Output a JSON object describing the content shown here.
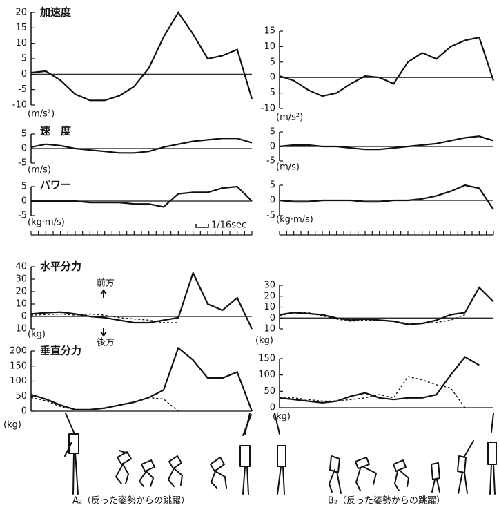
{
  "chart_data": [
    {
      "type": "line",
      "title": "加速度",
      "y_label": "(m/s²)",
      "x": [
        0,
        2,
        4,
        6,
        8,
        10,
        12,
        14,
        16,
        18,
        20,
        22,
        24,
        26,
        28,
        30
      ],
      "xlim": [
        0,
        30
      ],
      "ylim": [
        -10,
        20
      ],
      "yticks": [
        -10,
        -5,
        0,
        5,
        10,
        15,
        20
      ],
      "series": [
        {
          "color": "#111",
          "values": [
            0.5,
            1,
            -2,
            -6.5,
            -8.5,
            -8.5,
            -7,
            -4,
            2,
            12,
            20,
            13,
            5,
            6,
            8,
            -8
          ]
        }
      ]
    },
    {
      "type": "line",
      "title": "速　度",
      "y_label": "(m/s)",
      "x": [
        0,
        2,
        4,
        6,
        8,
        10,
        12,
        14,
        16,
        18,
        20,
        22,
        24,
        26,
        28,
        30
      ],
      "xlim": [
        0,
        30
      ],
      "ylim": [
        -5,
        5
      ],
      "yticks": [
        -5,
        0,
        5
      ],
      "series": [
        {
          "color": "#111",
          "values": [
            0.5,
            1.5,
            1,
            0,
            -0.5,
            -1,
            -1.5,
            -1.5,
            -1,
            0.5,
            1.5,
            2.5,
            3,
            3.5,
            3.5,
            2
          ]
        }
      ]
    },
    {
      "type": "line",
      "title": "パワー",
      "y_label": "(kg·m/s)",
      "scale_label": "1/16sec",
      "x": [
        0,
        2,
        4,
        6,
        8,
        10,
        12,
        14,
        16,
        18,
        20,
        22,
        24,
        26,
        28,
        30
      ],
      "xlim": [
        0,
        30
      ],
      "ylim": [
        -5,
        5
      ],
      "yticks": [
        -5,
        0,
        5
      ],
      "xticks": [
        0,
        1,
        2,
        3,
        4,
        5,
        6,
        7,
        8,
        9,
        10,
        11,
        12,
        13,
        14,
        15,
        16,
        17,
        18,
        19,
        20,
        21,
        22,
        23,
        24,
        25,
        26,
        27,
        28,
        29,
        30
      ],
      "series": [
        {
          "color": "#111",
          "values": [
            0,
            0,
            0,
            0,
            -0.5,
            -0.5,
            -0.5,
            -1,
            -1,
            -2,
            2.5,
            3,
            3,
            4.5,
            5,
            0
          ]
        }
      ]
    },
    {
      "type": "line",
      "title": "水平分力",
      "y_label": "(kg)",
      "annotations": [
        "前方",
        "後方"
      ],
      "x": [
        0,
        2,
        4,
        6,
        8,
        10,
        12,
        14,
        16,
        18,
        20,
        22,
        24,
        26,
        28,
        30
      ],
      "xlim": [
        0,
        30
      ],
      "ylim": [
        -10,
        40
      ],
      "yticks": [
        {
          "value": -10,
          "label": "10"
        },
        0,
        10,
        20,
        30,
        40
      ],
      "series": [
        {
          "color": "#111",
          "dashed": false,
          "values": [
            2,
            3,
            3.5,
            2,
            0,
            -1,
            -3,
            -5,
            -5,
            -3,
            -1,
            35,
            10,
            5,
            15,
            -10
          ]
        },
        {
          "color": "#111",
          "dashed": true,
          "values": [
            1,
            1.5,
            2,
            1,
            2,
            1,
            -1,
            -2,
            -3,
            -5,
            -5,
            null,
            null,
            null,
            null,
            null
          ]
        }
      ]
    },
    {
      "type": "line",
      "title": "垂直分力",
      "y_label": "(kg)",
      "x": [
        0,
        2,
        4,
        6,
        8,
        10,
        12,
        14,
        16,
        18,
        20,
        22,
        24,
        26,
        28,
        30
      ],
      "xlim": [
        0,
        30
      ],
      "ylim": [
        0,
        200
      ],
      "yticks": [
        0,
        50,
        100,
        150,
        200
      ],
      "series": [
        {
          "color": "#111",
          "dashed": false,
          "values": [
            55,
            40,
            20,
            5,
            5,
            10,
            20,
            30,
            45,
            70,
            210,
            170,
            110,
            110,
            130,
            0
          ]
        },
        {
          "color": "#111",
          "dashed": true,
          "values": [
            45,
            35,
            15,
            5,
            5,
            10,
            20,
            30,
            45,
            40,
            0,
            null,
            null,
            null,
            null,
            null
          ]
        }
      ]
    },
    {
      "type": "line",
      "y_label": "(m/s²)",
      "x": [
        0,
        2,
        4,
        6,
        8,
        10,
        12,
        14,
        16,
        18,
        20,
        22,
        24,
        26,
        28,
        30
      ],
      "xlim": [
        0,
        30
      ],
      "ylim": [
        -10,
        15
      ],
      "yticks": [
        -10,
        -5,
        0,
        5,
        10,
        15
      ],
      "series": [
        {
          "color": "#111",
          "values": [
            0.5,
            -1,
            -4,
            -6,
            -5,
            -2,
            0.5,
            0,
            -2,
            5,
            8,
            6,
            10,
            12,
            13,
            -1
          ]
        }
      ]
    },
    {
      "type": "line",
      "y_label": "(m/s)",
      "x": [
        0,
        2,
        4,
        6,
        8,
        10,
        12,
        14,
        16,
        18,
        20,
        22,
        24,
        26,
        28,
        30
      ],
      "xlim": [
        0,
        30
      ],
      "ylim": [
        -5,
        5
      ],
      "yticks": [
        -5,
        0,
        5
      ],
      "series": [
        {
          "color": "#111",
          "values": [
            0,
            0.5,
            0.5,
            0,
            0,
            -0.5,
            -1,
            -1,
            -0.5,
            0,
            0.5,
            1,
            2,
            3,
            3.5,
            2
          ]
        }
      ]
    },
    {
      "type": "line",
      "y_label": "(kg·m/s)",
      "x": [
        0,
        2,
        4,
        6,
        8,
        10,
        12,
        14,
        16,
        18,
        20,
        22,
        24,
        26,
        28,
        30
      ],
      "xlim": [
        0,
        30
      ],
      "ylim": [
        -5,
        5
      ],
      "yticks": [
        -5,
        0,
        5
      ],
      "xticks": [
        0,
        1,
        2,
        3,
        4,
        5,
        6,
        7,
        8,
        9,
        10,
        11,
        12,
        13,
        14,
        15,
        16,
        17,
        18,
        19,
        20,
        21,
        22,
        23,
        24,
        25,
        26,
        27,
        28,
        29,
        30
      ],
      "series": [
        {
          "color": "#111",
          "values": [
            0,
            -0.5,
            -0.5,
            0,
            0,
            0,
            -0.5,
            -0.5,
            0,
            0,
            0.5,
            1.5,
            3,
            5,
            4,
            -3
          ]
        }
      ]
    },
    {
      "type": "line",
      "y_label": "(kg)",
      "x": [
        0,
        2,
        4,
        6,
        8,
        10,
        12,
        14,
        16,
        18,
        20,
        22,
        24,
        26,
        28,
        30
      ],
      "xlim": [
        0,
        30
      ],
      "ylim": [
        -10,
        30
      ],
      "yticks": [
        {
          "value": -10,
          "label": "10"
        },
        0,
        10,
        20,
        30
      ],
      "series": [
        {
          "color": "#111",
          "dashed": false,
          "values": [
            3,
            5,
            4,
            3,
            0,
            -2,
            -1,
            -2,
            -3,
            -6,
            -5,
            -2,
            3,
            5,
            28,
            15
          ]
        },
        {
          "color": "#111",
          "dashed": true,
          "values": [
            2,
            5,
            5,
            2,
            -1,
            -3,
            -2,
            -2,
            -3,
            -5,
            -5,
            -4,
            -2,
            3,
            null,
            null
          ]
        }
      ]
    },
    {
      "type": "line",
      "y_label": "(kg)",
      "x": [
        0,
        2,
        4,
        6,
        8,
        10,
        12,
        14,
        16,
        18,
        20,
        22,
        24,
        26,
        28,
        30
      ],
      "xlim": [
        0,
        30
      ],
      "ylim": [
        0,
        150
      ],
      "yticks": [
        0,
        50,
        100,
        150
      ],
      "series": [
        {
          "color": "#111",
          "dashed": false,
          "values": [
            30,
            25,
            20,
            15,
            20,
            35,
            45,
            30,
            25,
            30,
            30,
            40,
            100,
            155,
            130,
            null
          ]
        },
        {
          "color": "#111",
          "dashed": true,
          "values": [
            30,
            30,
            25,
            20,
            20,
            25,
            30,
            40,
            30,
            95,
            85,
            70,
            60,
            0,
            null,
            null
          ]
        }
      ]
    }
  ],
  "captions": [
    "A₂（反った姿勢からの跳躍）",
    "B₂（反った姿勢からの跳躍）"
  ]
}
